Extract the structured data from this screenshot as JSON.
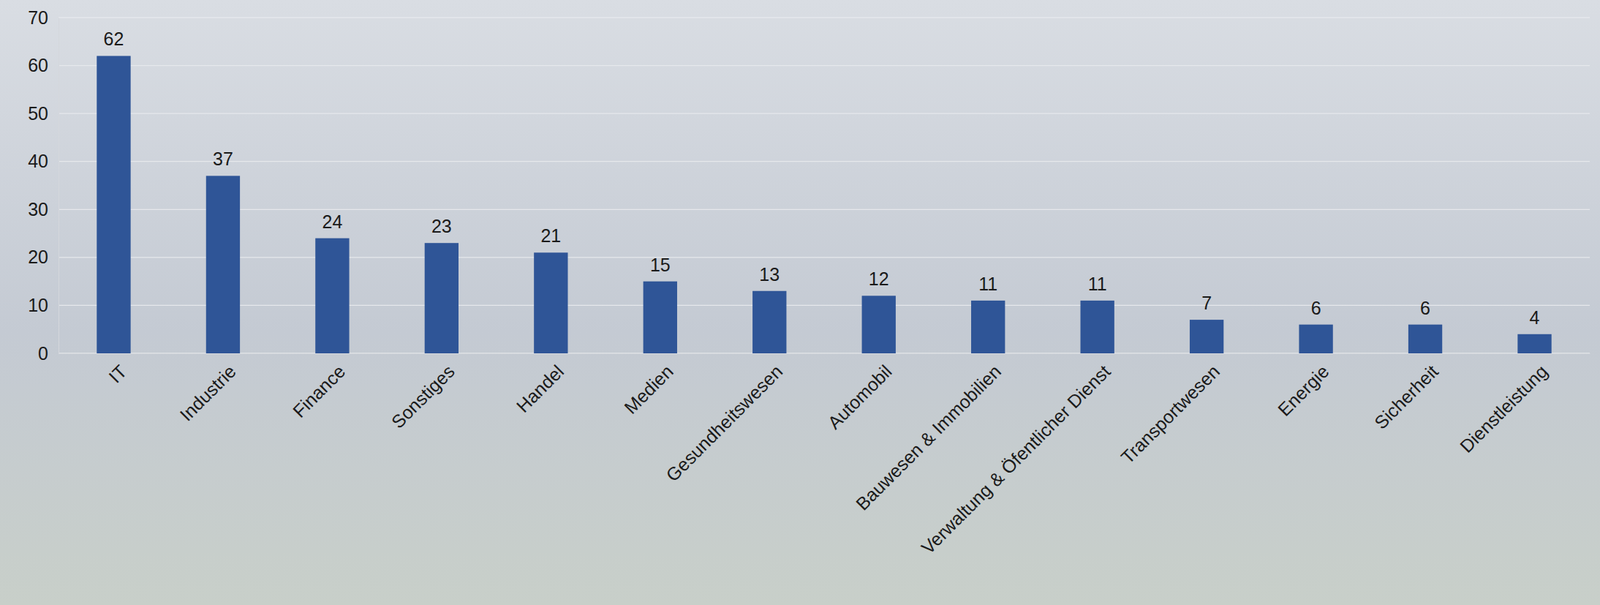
{
  "chart_data": {
    "type": "bar",
    "categories": [
      "IT",
      "Industrie",
      "Finance",
      "Sonstiges",
      "Handel",
      "Medien",
      "Gesundheitswesen",
      "Automobil",
      "Bauwesen & Immobilien",
      "Verwaltung & Öfentlicher Dienst",
      "Transportwesen",
      "Energie",
      "Sicherheit",
      "Dienstleistung"
    ],
    "values": [
      62,
      37,
      24,
      23,
      21,
      15,
      13,
      12,
      11,
      11,
      7,
      6,
      6,
      4
    ],
    "color": "#2f5597",
    "ylim": [
      0,
      70
    ],
    "yticks": [
      0,
      10,
      20,
      30,
      40,
      50,
      60,
      70
    ],
    "grid": true,
    "data_labels": true
  }
}
